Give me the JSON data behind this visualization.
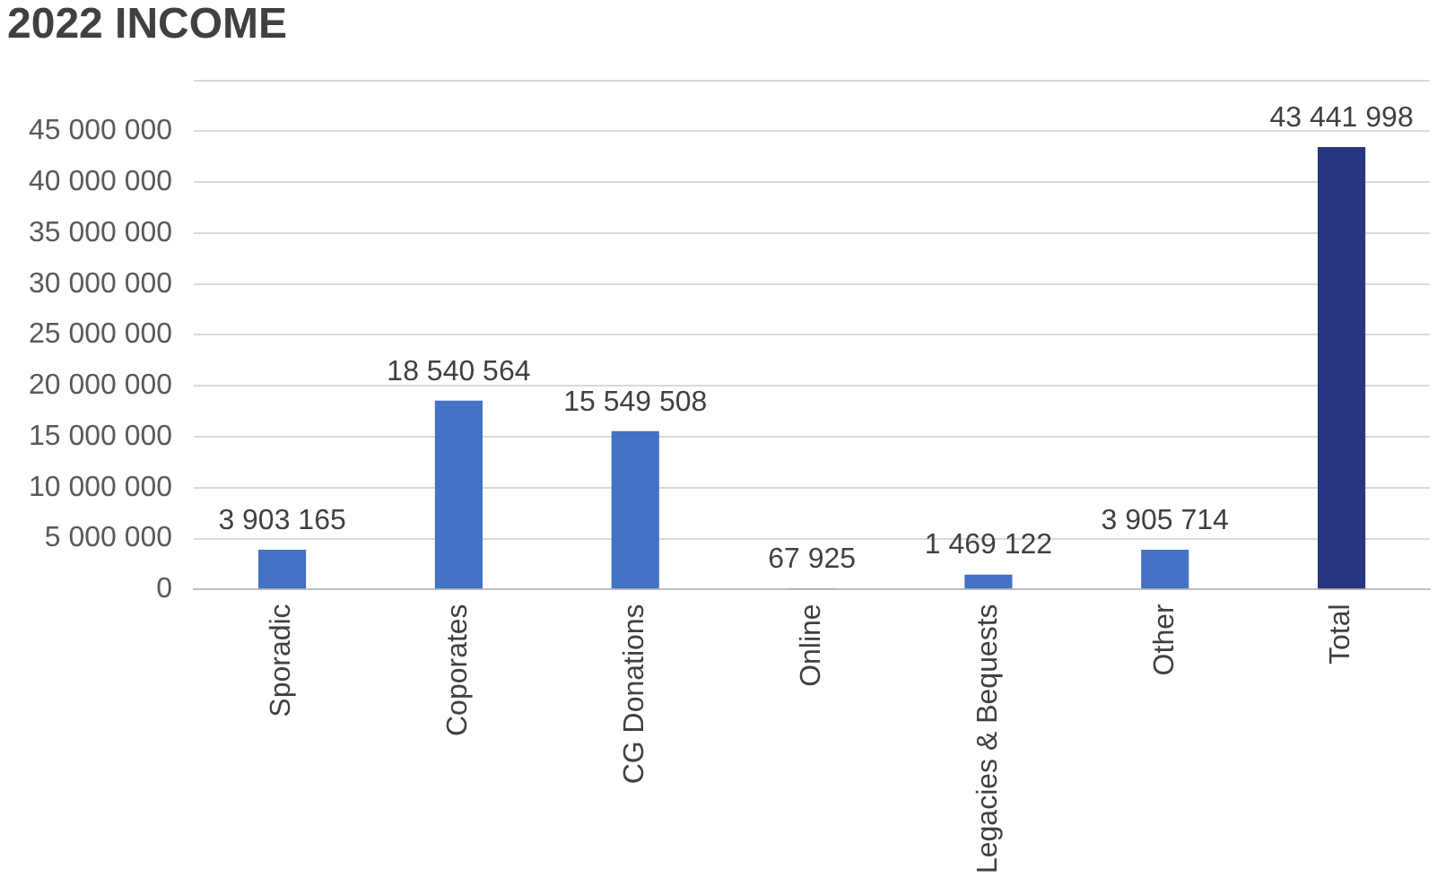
{
  "chart_data": {
    "type": "bar",
    "title": "2022 INCOME",
    "categories": [
      "Sporadic",
      "Coporates",
      "CG Donations",
      "Online",
      "Legacies & Bequests",
      "Other",
      "Total"
    ],
    "values": [
      3903165,
      18540564,
      15549508,
      67925,
      1469122,
      3905714,
      43441998
    ],
    "colors": [
      "#4472c4",
      "#4472c4",
      "#4472c4",
      "#4472c4",
      "#4472c4",
      "#4472c4",
      "#273582"
    ],
    "value_labels": [
      "3 903 165",
      "18 540 564",
      "15 549 508",
      "67 925",
      "1 469 122",
      "3 905 714",
      "43 441 998"
    ],
    "ylim": [
      0,
      50000000
    ],
    "yticks": [
      0,
      {
        "value": 5000000,
        "label": "5 000 000"
      },
      {
        "value": 10000000,
        "label": "10 000 000"
      },
      {
        "value": 15000000,
        "label": "15 000 000"
      },
      {
        "value": 20000000,
        "label": "20 000 000"
      },
      {
        "value": 25000000,
        "label": "25 000 000"
      },
      {
        "value": 30000000,
        "label": "30 000 000"
      },
      {
        "value": 35000000,
        "label": "35 000 000"
      },
      {
        "value": 40000000,
        "label": "40 000 000"
      },
      {
        "value": 45000000,
        "label": "45 000 000"
      },
      {
        "value": 50000000,
        "label": null
      }
    ],
    "grid": "y",
    "legend": false
  }
}
